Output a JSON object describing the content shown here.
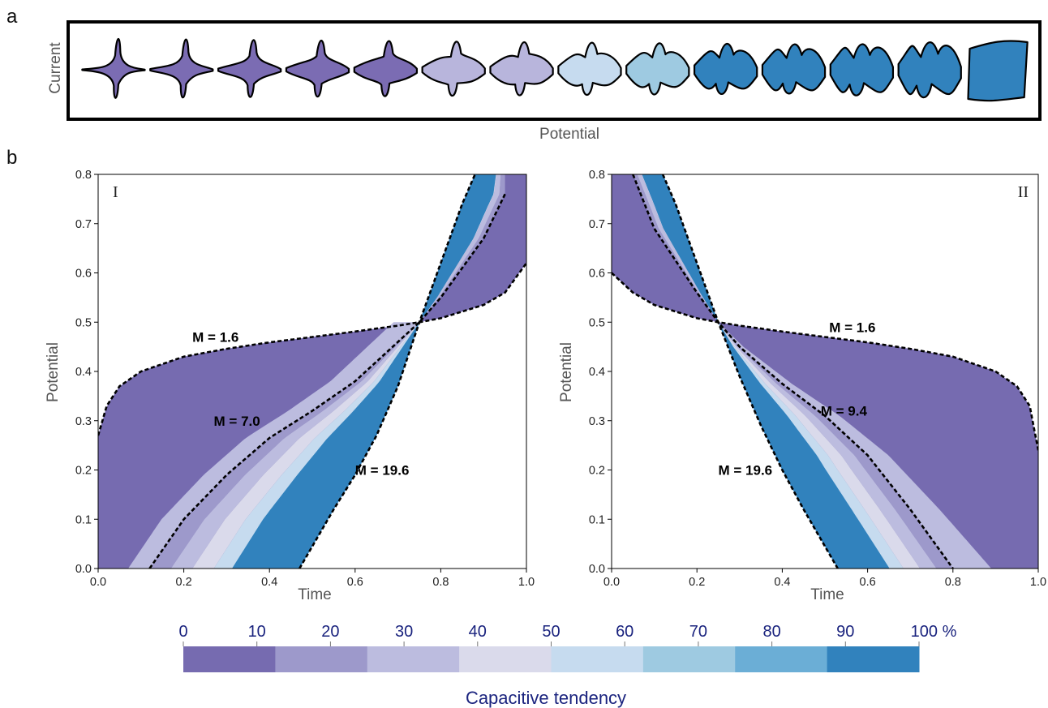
{
  "panel_a": {
    "letter": "a",
    "x_label": "Potential",
    "y_label": "Current",
    "shape_colors": [
      "#7b6cb3",
      "#7b6cb3",
      "#7b6cb3",
      "#7b6cb3",
      "#7b6cb3",
      "#b8b5dc",
      "#b8b5dc",
      "#c6dbef",
      "#9ecae1",
      "#3182bd",
      "#3182bd",
      "#3182bd",
      "#3182bd",
      "#3182bd"
    ]
  },
  "panel_b": {
    "letter": "b"
  },
  "chart_data": [
    {
      "type": "area",
      "panel_label": "I",
      "xlabel": "Time",
      "ylabel": "Potential",
      "xlim": [
        0.0,
        1.0
      ],
      "ylim": [
        0.0,
        0.8
      ],
      "x_ticks": [
        "0.0",
        "0.2",
        "0.4",
        "0.6",
        "0.8",
        "1.0"
      ],
      "y_ticks": [
        "0.0",
        "0.1",
        "0.2",
        "0.3",
        "0.4",
        "0.5",
        "0.6",
        "0.7",
        "0.8"
      ],
      "crossing_point": {
        "x": 0.75,
        "y": 0.5
      },
      "series": [
        {
          "name": "M = 1.6",
          "x": [
            0.0,
            0.02,
            0.05,
            0.1,
            0.2,
            0.3,
            0.4,
            0.5,
            0.6,
            0.7,
            0.75,
            0.8,
            0.9,
            0.95,
            1.0
          ],
          "y": [
            0.27,
            0.33,
            0.37,
            0.4,
            0.43,
            0.446,
            0.459,
            0.47,
            0.481,
            0.493,
            0.5,
            0.508,
            0.535,
            0.56,
            0.62
          ]
        },
        {
          "name": "M = 7.0",
          "x": [
            0.12,
            0.2,
            0.3,
            0.4,
            0.5,
            0.6,
            0.7,
            0.75,
            0.8,
            0.9,
            0.95
          ],
          "y": [
            0.0,
            0.1,
            0.19,
            0.265,
            0.32,
            0.38,
            0.46,
            0.5,
            0.55,
            0.67,
            0.76
          ]
        },
        {
          "name": "M = 19.6",
          "x": [
            0.47,
            0.55,
            0.6,
            0.65,
            0.7,
            0.75,
            0.8,
            0.85,
            0.88
          ],
          "y": [
            0.0,
            0.12,
            0.19,
            0.27,
            0.37,
            0.5,
            0.62,
            0.74,
            0.8
          ]
        }
      ]
    },
    {
      "type": "area",
      "panel_label": "II",
      "xlabel": "Time",
      "ylabel": "Potential",
      "xlim": [
        0.0,
        1.0
      ],
      "ylim": [
        0.0,
        0.8
      ],
      "x_ticks": [
        "0.0",
        "0.2",
        "0.4",
        "0.6",
        "0.8",
        "1.0"
      ],
      "y_ticks": [
        "0.0",
        "0.1",
        "0.2",
        "0.3",
        "0.4",
        "0.5",
        "0.6",
        "0.7",
        "0.8"
      ],
      "crossing_point": {
        "x": 0.25,
        "y": 0.5
      },
      "series": [
        {
          "name": "M = 1.6",
          "x": [
            0.0,
            0.05,
            0.1,
            0.2,
            0.25,
            0.3,
            0.4,
            0.5,
            0.6,
            0.7,
            0.8,
            0.9,
            0.95,
            0.98,
            1.0
          ],
          "y": [
            0.6,
            0.56,
            0.535,
            0.508,
            0.5,
            0.493,
            0.481,
            0.47,
            0.459,
            0.446,
            0.43,
            0.4,
            0.37,
            0.33,
            0.24
          ]
        },
        {
          "name": "M = 9.4",
          "x": [
            0.05,
            0.1,
            0.2,
            0.25,
            0.3,
            0.4,
            0.5,
            0.6,
            0.7,
            0.75,
            0.8
          ],
          "y": [
            0.8,
            0.69,
            0.56,
            0.5,
            0.45,
            0.375,
            0.31,
            0.23,
            0.12,
            0.06,
            0.0
          ]
        },
        {
          "name": "M = 19.6",
          "x": [
            0.12,
            0.15,
            0.2,
            0.25,
            0.3,
            0.35,
            0.4,
            0.45,
            0.53
          ],
          "y": [
            0.8,
            0.74,
            0.62,
            0.5,
            0.39,
            0.29,
            0.2,
            0.12,
            0.0
          ]
        }
      ]
    }
  ],
  "colorbar": {
    "title": "Capacitive tendency",
    "tick_labels": [
      "0",
      "10",
      "20",
      "30",
      "40",
      "50",
      "60",
      "70",
      "80",
      "90",
      "100 %"
    ],
    "colors": [
      "#766bb0",
      "#9d99cb",
      "#bcbcdf",
      "#dadaeb",
      "#c6dbef",
      "#9ecae1",
      "#6baed6",
      "#3182bd"
    ]
  }
}
